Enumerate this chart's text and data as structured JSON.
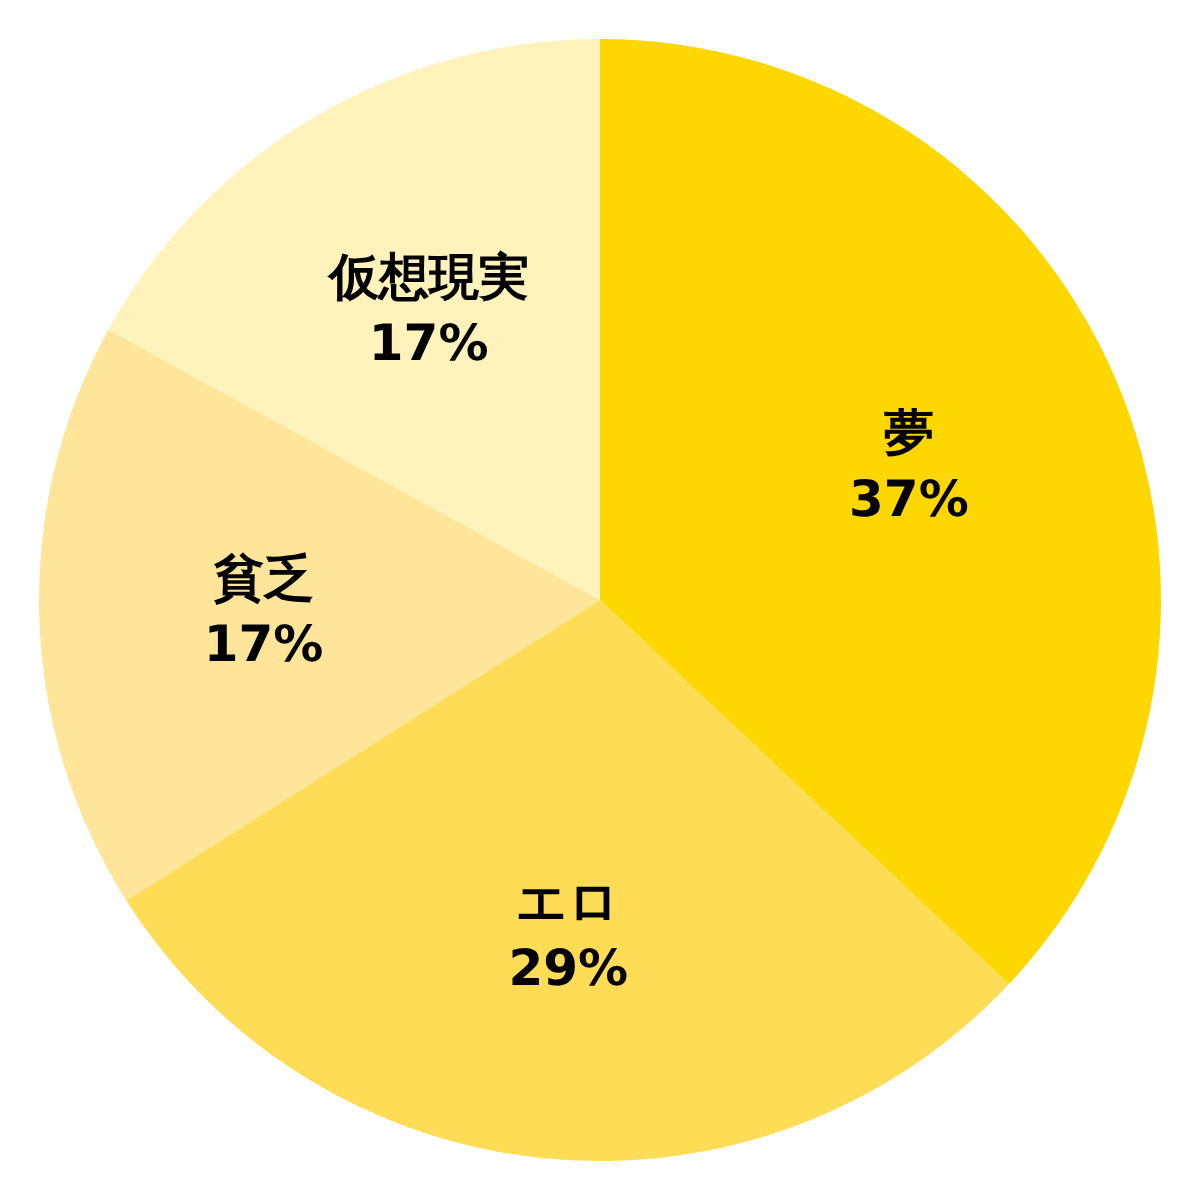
{
  "chart_data": {
    "type": "pie",
    "categories": [
      "夢",
      "エロ",
      "貧乏",
      "仮想現実"
    ],
    "values": [
      37,
      29,
      17,
      17
    ],
    "value_labels": [
      "37%",
      "29%",
      "17%",
      "17%"
    ],
    "colors": [
      "#ffd700",
      "#ffdc55",
      "#ffe599",
      "#fff3bb"
    ],
    "legend": false
  }
}
